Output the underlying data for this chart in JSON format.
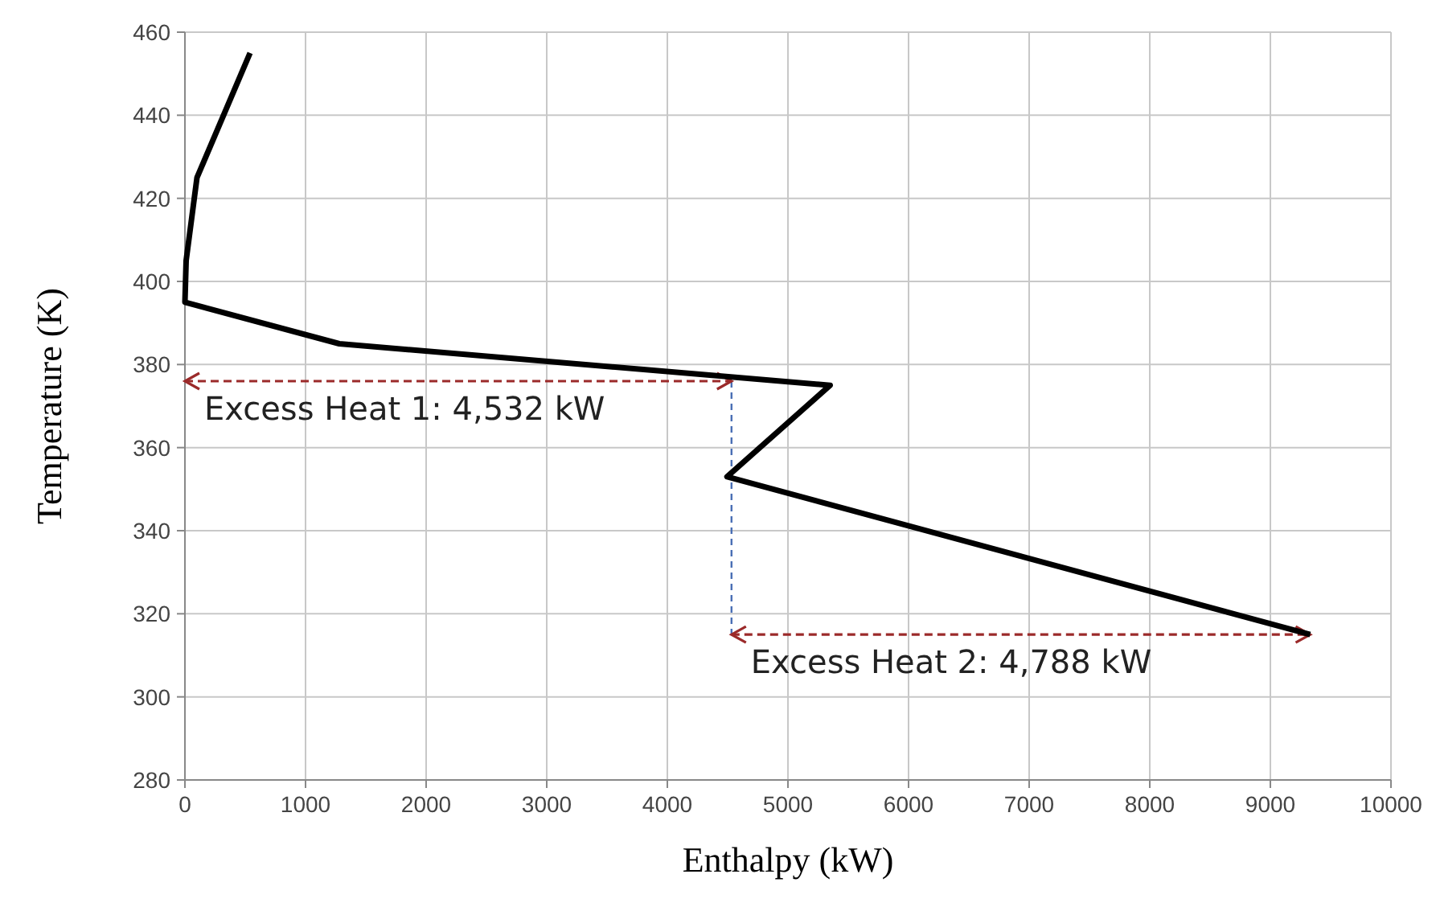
{
  "chart_data": {
    "type": "line",
    "xlabel": "Enthalpy  (kW)",
    "ylabel": "Temperature  (K)",
    "x": [
      540,
      100,
      10,
      0,
      1280,
      5350,
      4495,
      9330
    ],
    "series": [
      {
        "color": "#000000",
        "values": [
          455,
          425,
          405,
          395,
          385,
          375,
          353,
          315
        ]
      }
    ],
    "xlim": [
      0,
      10000
    ],
    "xticks": [
      0,
      1000,
      2000,
      3000,
      4000,
      5000,
      6000,
      7000,
      8000,
      9000,
      10000
    ],
    "ylim": [
      280,
      460
    ],
    "yticks": [
      280,
      300,
      320,
      340,
      360,
      380,
      400,
      420,
      440,
      460
    ],
    "grid": true,
    "marker": "none",
    "line_style": "solid",
    "annotations": [
      {
        "text": "Excess Heat 1: 4,532 kW",
        "x": 4532,
        "y": 376
      },
      {
        "text": "Excess Heat 2: 4,788 kW",
        "x": 9330,
        "y": 315
      }
    ]
  }
}
